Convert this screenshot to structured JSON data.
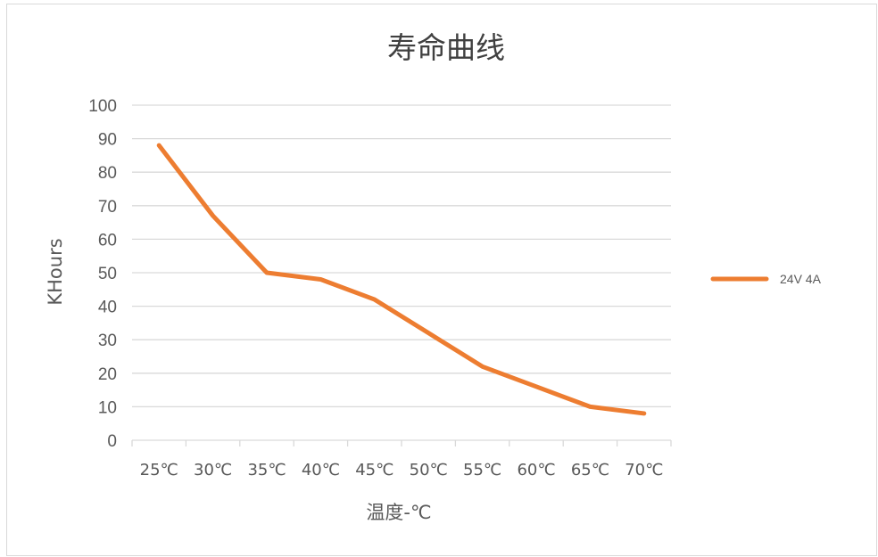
{
  "chart_data": {
    "type": "line",
    "title": "寿命曲线",
    "xlabel": "温度-℃",
    "ylabel": "KHours",
    "categories": [
      "25℃",
      "30℃",
      "35℃",
      "40℃",
      "45℃",
      "50℃",
      "55℃",
      "60℃",
      "65℃",
      "70℃"
    ],
    "series": [
      {
        "name": "24V 4A",
        "color": "#ed7d31",
        "values": [
          88,
          67,
          50,
          48,
          42,
          32,
          22,
          16,
          10,
          8
        ]
      }
    ],
    "ylim": [
      0,
      100
    ],
    "ytick_labels": [
      "0",
      "10",
      "20",
      "30",
      "40",
      "50",
      "60",
      "70",
      "80",
      "90",
      "100"
    ],
    "grid": "horizontal",
    "legend_position": "right",
    "colors": {
      "series": "#ed7d31",
      "grid": "#d9d9d9",
      "text": "#595959",
      "title": "#404040"
    }
  }
}
